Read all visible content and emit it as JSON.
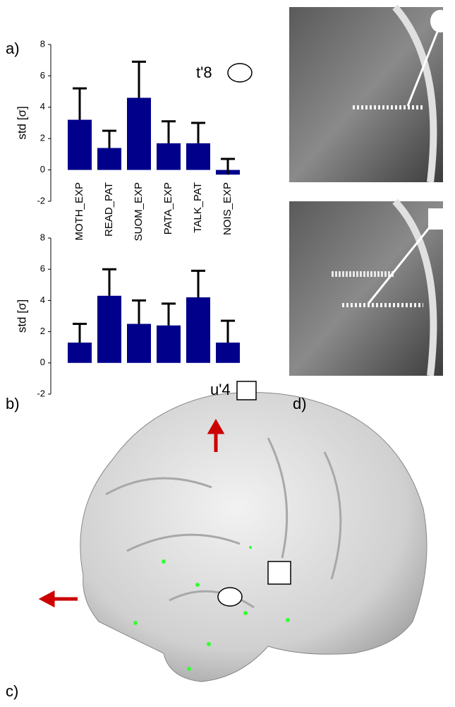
{
  "chart_data": [
    {
      "type": "bar",
      "y_label": "std [σ]",
      "categories": [
        "MOTH_EXP",
        "READ_PAT",
        "SUOM_EXP",
        "PATA_EXP",
        "TALK_PAT",
        "NOIS_EXP"
      ],
      "values": [
        3.2,
        1.4,
        4.6,
        1.7,
        1.7,
        -0.3
      ],
      "errors": [
        2.0,
        1.1,
        2.3,
        1.4,
        1.3,
        1.0
      ],
      "color": "#00008b",
      "ylim": [
        -2,
        8
      ],
      "yticks": [
        -2,
        0,
        2,
        4,
        6,
        8
      ]
    },
    {
      "type": "bar",
      "y_label": "std [σ]",
      "values": [
        1.3,
        4.3,
        2.5,
        2.4,
        4.2,
        1.3
      ],
      "errors": [
        1.2,
        1.7,
        1.5,
        1.4,
        1.7,
        1.4
      ],
      "color": "#00008b",
      "ylim": [
        -2,
        8
      ],
      "yticks": [
        -2,
        0,
        2,
        4,
        6,
        8
      ]
    }
  ],
  "figure": {
    "panel_a": "a)",
    "panel_b": "b)",
    "panel_c": "c)",
    "panel_d": "d)",
    "electrode_t": "t'8",
    "electrode_u": "u'4"
  }
}
